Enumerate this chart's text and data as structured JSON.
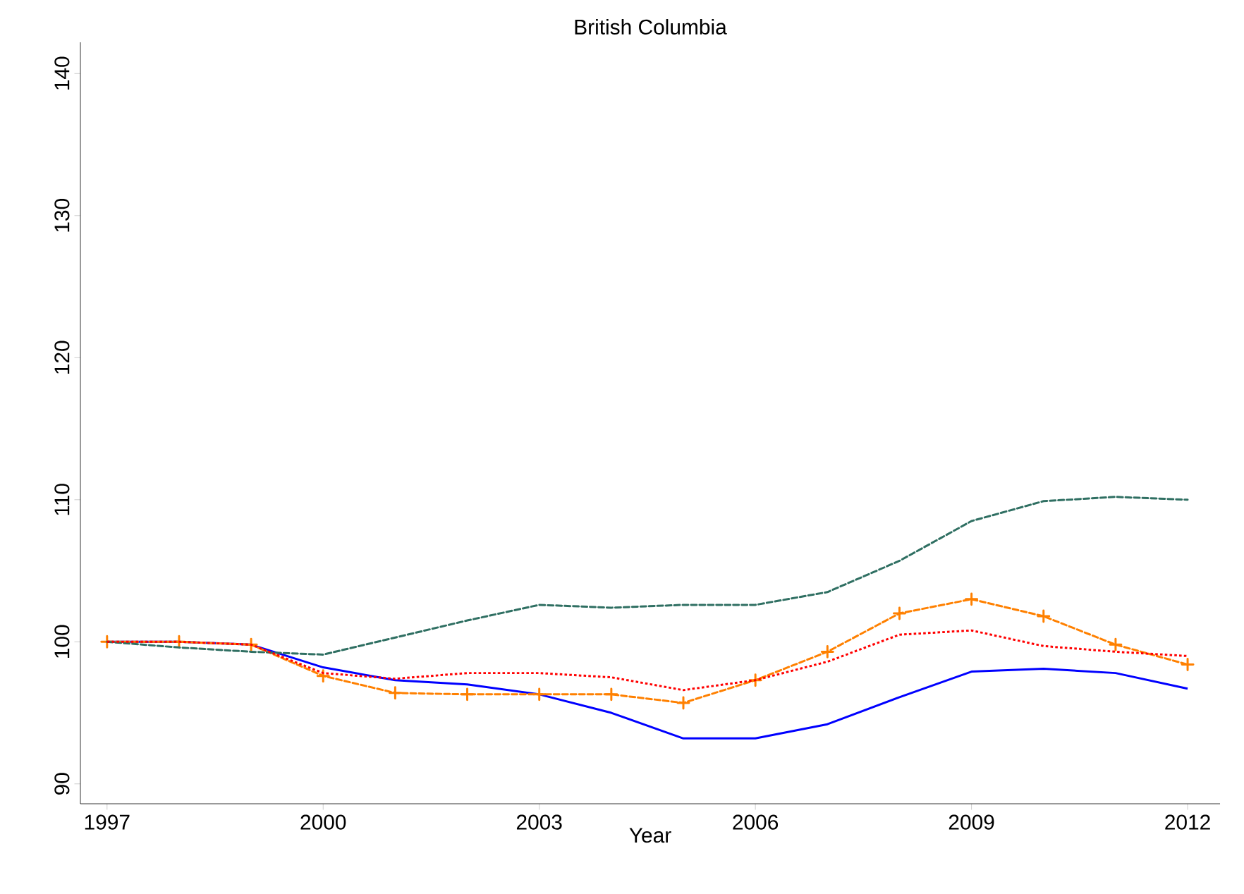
{
  "chart_data": {
    "type": "line",
    "title": "British Columbia",
    "xlabel": "Year",
    "x": [
      1997,
      1998,
      1999,
      2000,
      2001,
      2002,
      2003,
      2004,
      2005,
      2006,
      2007,
      2008,
      2009,
      2010,
      2011,
      2012
    ],
    "series": [
      {
        "color": "#0000ff",
        "line_style": "solid",
        "marker": "none",
        "values": [
          100,
          100,
          99.8,
          98.2,
          97.3,
          97.0,
          96.3,
          95.0,
          93.2,
          93.2,
          94.2,
          96.1,
          97.9,
          98.1,
          97.8,
          96.7
        ]
      },
      {
        "color": "#ff0000",
        "line_style": "dotted",
        "marker": "none",
        "values": [
          100,
          100,
          99.8,
          97.8,
          97.4,
          97.8,
          97.8,
          97.5,
          96.6,
          97.3,
          98.6,
          100.5,
          100.8,
          99.7,
          99.3,
          99.0
        ]
      },
      {
        "color": "#2f6f62",
        "line_style": "dashed",
        "marker": "none",
        "values": [
          100,
          99.6,
          99.3,
          99.1,
          100.3,
          101.5,
          102.6,
          102.4,
          102.6,
          102.6,
          103.5,
          105.7,
          108.5,
          109.9,
          110.2,
          110.0
        ]
      },
      {
        "color": "#ff8000",
        "line_style": "dashed",
        "marker": "cross",
        "values": [
          100,
          100,
          99.8,
          97.6,
          96.4,
          96.3,
          96.3,
          96.3,
          95.7,
          97.3,
          99.3,
          102.0,
          103.0,
          101.8,
          99.8,
          98.4
        ]
      }
    ],
    "xlim": [
      1996.63,
      2012.45
    ],
    "ylim": [
      88.6,
      142.2
    ],
    "xticks": [
      1997,
      2000,
      2003,
      2006,
      2009,
      2012
    ],
    "yticks": [
      90,
      100,
      110,
      120,
      130,
      140
    ],
    "grid": false
  }
}
